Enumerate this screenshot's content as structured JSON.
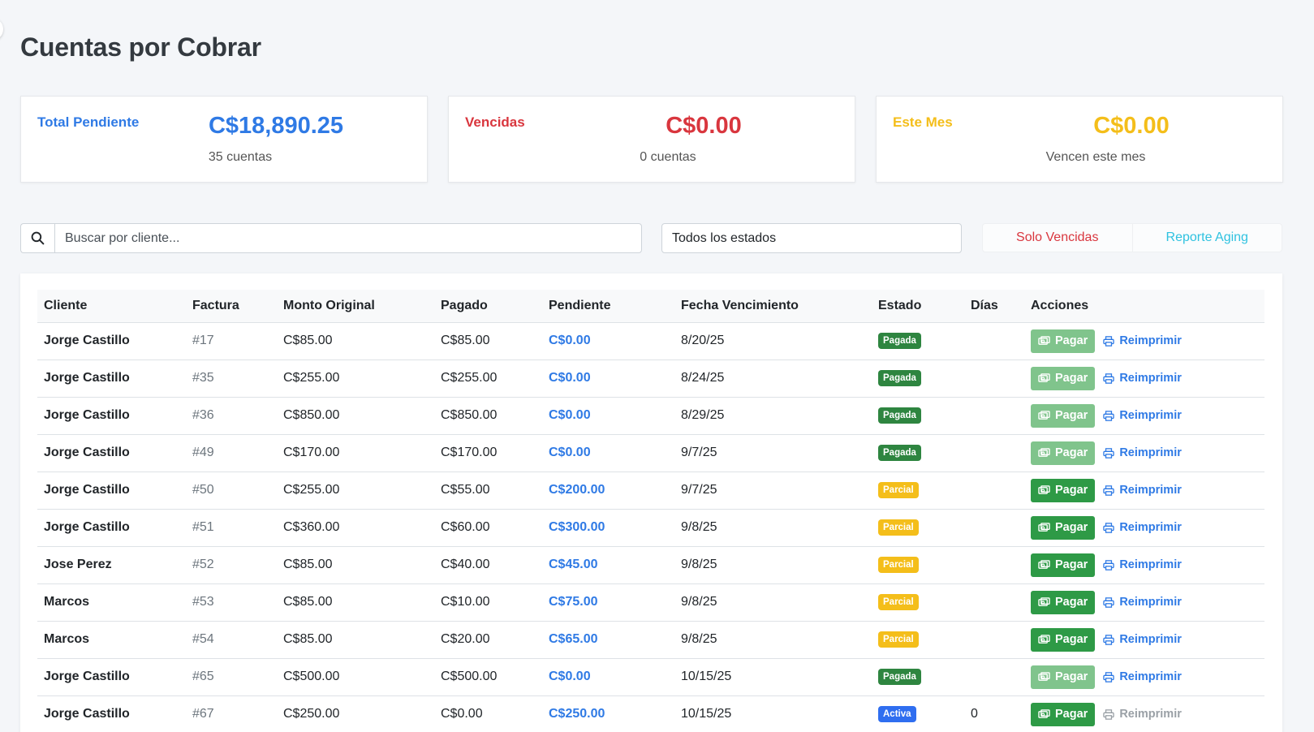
{
  "page": {
    "title": "Cuentas por Cobrar"
  },
  "summary": {
    "total": {
      "label": "Total Pendiente",
      "value": "C$18,890.25",
      "sub": "35 cuentas"
    },
    "overdue": {
      "label": "Vencidas",
      "value": "C$0.00",
      "sub": "0 cuentas"
    },
    "month": {
      "label": "Este Mes",
      "value": "C$0.00",
      "sub": "Vencen este mes"
    }
  },
  "filters": {
    "search_placeholder": "Buscar por cliente...",
    "status_selected": "Todos los estados",
    "only_overdue_label": "Solo Vencidas",
    "aging_report_label": "Reporte Aging"
  },
  "table": {
    "headers": [
      "Cliente",
      "Factura",
      "Monto Original",
      "Pagado",
      "Pendiente",
      "Fecha Vencimiento",
      "Estado",
      "Días",
      "Acciones"
    ],
    "pay_label": "Pagar",
    "reprint_label": "Reimprimir",
    "rows": [
      {
        "client": "Jorge Castillo",
        "invoice": "#17",
        "original": "C$85.00",
        "paid": "C$85.00",
        "pending": "C$0.00",
        "due": "8/20/25",
        "status": "Pagada",
        "days": ""
      },
      {
        "client": "Jorge Castillo",
        "invoice": "#35",
        "original": "C$255.00",
        "paid": "C$255.00",
        "pending": "C$0.00",
        "due": "8/24/25",
        "status": "Pagada",
        "days": ""
      },
      {
        "client": "Jorge Castillo",
        "invoice": "#36",
        "original": "C$850.00",
        "paid": "C$850.00",
        "pending": "C$0.00",
        "due": "8/29/25",
        "status": "Pagada",
        "days": ""
      },
      {
        "client": "Jorge Castillo",
        "invoice": "#49",
        "original": "C$170.00",
        "paid": "C$170.00",
        "pending": "C$0.00",
        "due": "9/7/25",
        "status": "Pagada",
        "days": ""
      },
      {
        "client": "Jorge Castillo",
        "invoice": "#50",
        "original": "C$255.00",
        "paid": "C$55.00",
        "pending": "C$200.00",
        "due": "9/7/25",
        "status": "Parcial",
        "days": ""
      },
      {
        "client": "Jorge Castillo",
        "invoice": "#51",
        "original": "C$360.00",
        "paid": "C$60.00",
        "pending": "C$300.00",
        "due": "9/8/25",
        "status": "Parcial",
        "days": ""
      },
      {
        "client": "Jose Perez",
        "invoice": "#52",
        "original": "C$85.00",
        "paid": "C$40.00",
        "pending": "C$45.00",
        "due": "9/8/25",
        "status": "Parcial",
        "days": ""
      },
      {
        "client": "Marcos",
        "invoice": "#53",
        "original": "C$85.00",
        "paid": "C$10.00",
        "pending": "C$75.00",
        "due": "9/8/25",
        "status": "Parcial",
        "days": ""
      },
      {
        "client": "Marcos",
        "invoice": "#54",
        "original": "C$85.00",
        "paid": "C$20.00",
        "pending": "C$65.00",
        "due": "9/8/25",
        "status": "Parcial",
        "days": ""
      },
      {
        "client": "Jorge Castillo",
        "invoice": "#65",
        "original": "C$500.00",
        "paid": "C$500.00",
        "pending": "C$0.00",
        "due": "10/15/25",
        "status": "Pagada",
        "days": ""
      },
      {
        "client": "Jorge Castillo",
        "invoice": "#67",
        "original": "C$250.00",
        "paid": "C$0.00",
        "pending": "C$250.00",
        "due": "10/15/25",
        "status": "Activa",
        "days": "0"
      }
    ]
  }
}
